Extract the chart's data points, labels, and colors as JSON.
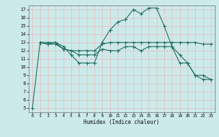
{
  "title": "",
  "xlabel": "Humidex (Indice chaleur)",
  "bg_color": "#cceaea",
  "grid_color": "#aaaaaa",
  "line_color": "#1a6b5a",
  "xlim": [
    -0.5,
    23.5
  ],
  "ylim": [
    4.5,
    17.5
  ],
  "xticks": [
    0,
    1,
    2,
    3,
    4,
    5,
    6,
    7,
    8,
    9,
    10,
    11,
    12,
    13,
    14,
    15,
    16,
    17,
    18,
    19,
    20,
    21,
    22,
    23
  ],
  "yticks": [
    5,
    6,
    7,
    8,
    9,
    10,
    11,
    12,
    13,
    14,
    15,
    16,
    17
  ],
  "line1_x": [
    0,
    1,
    2,
    3,
    4,
    5,
    6,
    7,
    8,
    9,
    10,
    11,
    12,
    13,
    14,
    15,
    16,
    17,
    18,
    19,
    20,
    21,
    22,
    23
  ],
  "line1_y": [
    5.0,
    13.0,
    13.0,
    13.0,
    12.5,
    11.5,
    10.5,
    10.5,
    10.5,
    13.0,
    14.5,
    15.5,
    15.8,
    17.0,
    16.5,
    17.2,
    17.2,
    15.0,
    12.5,
    10.5,
    10.5,
    9.0,
    8.5,
    8.5
  ],
  "line2_x": [
    1,
    2,
    3,
    4,
    5,
    6,
    7,
    8,
    9,
    10,
    11,
    12,
    13,
    14,
    15,
    16,
    17,
    18,
    19,
    20,
    21,
    22,
    23
  ],
  "line2_y": [
    13.0,
    12.8,
    12.8,
    12.2,
    12.0,
    12.0,
    12.0,
    12.0,
    12.8,
    13.0,
    13.0,
    13.0,
    13.0,
    13.0,
    13.0,
    13.0,
    13.0,
    13.0,
    13.0,
    13.0,
    13.0,
    12.8,
    12.8
  ],
  "line3_x": [
    1,
    2,
    3,
    4,
    5,
    6,
    7,
    8,
    9,
    10,
    11,
    12,
    13,
    14,
    15,
    16,
    17,
    18,
    19,
    20,
    21,
    22,
    23
  ],
  "line3_y": [
    13.0,
    12.8,
    13.0,
    12.2,
    12.0,
    11.5,
    11.5,
    11.5,
    12.2,
    12.0,
    12.0,
    12.5,
    12.5,
    12.0,
    12.5,
    12.5,
    12.5,
    12.5,
    11.5,
    10.5,
    9.0,
    9.0,
    8.5
  ]
}
